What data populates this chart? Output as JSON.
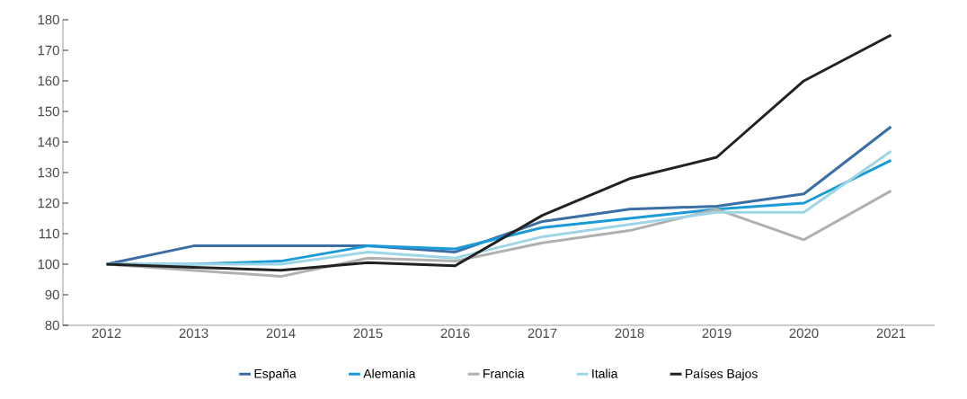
{
  "chart_data": {
    "type": "line",
    "categories": [
      "2012",
      "2013",
      "2014",
      "2015",
      "2016",
      "2017",
      "2018",
      "2019",
      "2020",
      "2021"
    ],
    "series": [
      {
        "name": "España",
        "color": "#3a6ea5",
        "values": [
          100,
          106,
          106,
          106,
          104,
          114,
          118,
          119,
          123,
          145
        ]
      },
      {
        "name": "Alemania",
        "color": "#1a9ad6",
        "values": [
          100,
          100,
          101,
          106,
          105,
          112,
          115,
          118,
          120,
          134
        ]
      },
      {
        "name": "Francia",
        "color": "#b0b0b0",
        "values": [
          100,
          98,
          96,
          102,
          101,
          107,
          111,
          118,
          108,
          124
        ]
      },
      {
        "name": "Italia",
        "color": "#9fd6e6",
        "values": [
          100,
          100,
          100,
          104,
          102,
          109,
          113,
          117,
          117,
          137
        ]
      },
      {
        "name": "Países Bajos",
        "color": "#222222",
        "values": [
          100,
          99,
          98,
          100.5,
          99.5,
          116,
          128,
          135,
          160,
          175
        ]
      }
    ],
    "ylim": [
      80,
      180
    ],
    "yticks": [
      80,
      90,
      100,
      110,
      120,
      130,
      140,
      150,
      160,
      170,
      180
    ],
    "grid": false,
    "legend": "bottom",
    "marker": "none",
    "line_style": "solid"
  }
}
